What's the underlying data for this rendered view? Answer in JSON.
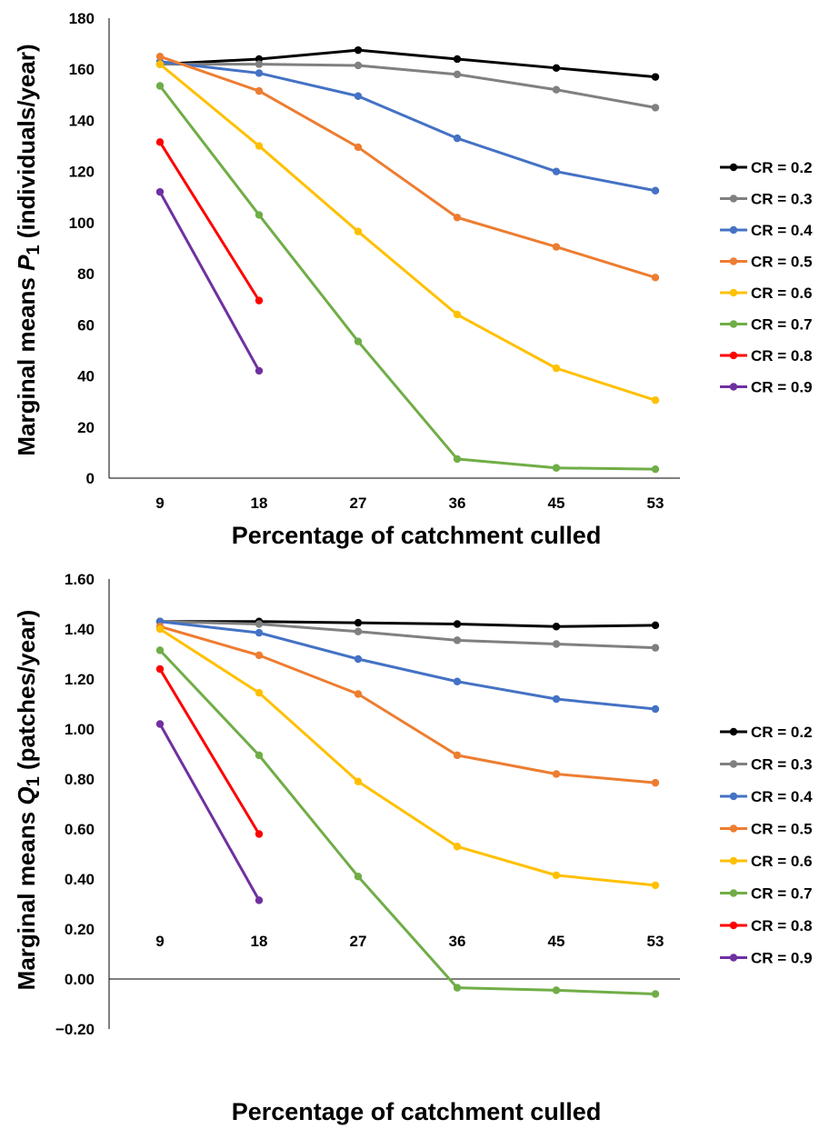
{
  "chart_data": [
    {
      "type": "line",
      "xlabel": "Percentage of catchment culled",
      "ylabel": {
        "prefix": "Marginal means ",
        "var": "P",
        "sub": "1",
        "suffix": " (individuals/year)"
      },
      "categories": [
        "9",
        "18",
        "27",
        "36",
        "45",
        "53"
      ],
      "ylim": [
        0,
        180
      ],
      "yticks": [
        0,
        20,
        40,
        60,
        80,
        100,
        120,
        140,
        160,
        180
      ],
      "ytick_labels": [
        "0",
        "20",
        "40",
        "60",
        "80",
        "100",
        "120",
        "140",
        "160",
        "180"
      ],
      "legend_position": "right",
      "grid": false,
      "series": [
        {
          "name": "CR = 0.2",
          "color": "#000000",
          "values": [
            162,
            164,
            167.5,
            164,
            160.5,
            157
          ]
        },
        {
          "name": "CR = 0.3",
          "color": "#808080",
          "values": [
            162,
            162,
            161.5,
            158,
            152,
            145
          ]
        },
        {
          "name": "CR = 0.4",
          "color": "#4472C4",
          "values": [
            163,
            158.5,
            149.5,
            133,
            120,
            112.5
          ]
        },
        {
          "name": "CR = 0.5",
          "color": "#ED7D31",
          "values": [
            165,
            151.5,
            129.5,
            102,
            90.5,
            78.5
          ]
        },
        {
          "name": "CR = 0.6",
          "color": "#FFC000",
          "values": [
            162,
            130,
            96.5,
            64,
            43,
            30.5
          ]
        },
        {
          "name": "CR = 0.7",
          "color": "#70AD47",
          "values": [
            153.5,
            103,
            53.5,
            7.5,
            4,
            3.5
          ]
        },
        {
          "name": "CR = 0.8",
          "color": "#FF0000",
          "values": [
            131.5,
            69.5,
            null,
            null,
            null,
            null
          ]
        },
        {
          "name": "CR = 0.9",
          "color": "#7030A0",
          "values": [
            112,
            42,
            null,
            null,
            null,
            null
          ]
        }
      ]
    },
    {
      "type": "line",
      "xlabel": "Percentage of catchment culled",
      "ylabel": {
        "prefix": "Marginal means ",
        "var": "Q",
        "sub": "1",
        "suffix": " (patches/year)"
      },
      "categories": [
        "9",
        "18",
        "27",
        "36",
        "45",
        "53"
      ],
      "ylim": [
        -0.2,
        1.6
      ],
      "yticks": [
        -0.2,
        0,
        0.2,
        0.4,
        0.6,
        0.8,
        1.0,
        1.2,
        1.4,
        1.6
      ],
      "ytick_labels": [
        "−0.20",
        "0.00",
        "0.20",
        "0.40",
        "0.60",
        "0.80",
        "1.00",
        "1.20",
        "1.40",
        "1.60"
      ],
      "legend_position": "right",
      "grid": false,
      "series": [
        {
          "name": "CR = 0.2",
          "color": "#000000",
          "values": [
            1.43,
            1.43,
            1.425,
            1.42,
            1.41,
            1.415
          ]
        },
        {
          "name": "CR = 0.3",
          "color": "#808080",
          "values": [
            1.43,
            1.42,
            1.39,
            1.355,
            1.34,
            1.325
          ]
        },
        {
          "name": "CR = 0.4",
          "color": "#4472C4",
          "values": [
            1.43,
            1.385,
            1.28,
            1.19,
            1.12,
            1.08
          ]
        },
        {
          "name": "CR = 0.5",
          "color": "#ED7D31",
          "values": [
            1.41,
            1.295,
            1.14,
            0.895,
            0.82,
            0.785
          ]
        },
        {
          "name": "CR = 0.6",
          "color": "#FFC000",
          "values": [
            1.4,
            1.145,
            0.79,
            0.53,
            0.415,
            0.375
          ]
        },
        {
          "name": "CR = 0.7",
          "color": "#70AD47",
          "values": [
            1.315,
            0.895,
            0.41,
            -0.035,
            -0.045,
            -0.06
          ]
        },
        {
          "name": "CR = 0.8",
          "color": "#FF0000",
          "values": [
            1.24,
            0.58,
            null,
            null,
            null,
            null
          ]
        },
        {
          "name": "CR = 0.9",
          "color": "#7030A0",
          "values": [
            1.02,
            0.315,
            null,
            null,
            null,
            null
          ]
        }
      ]
    }
  ]
}
